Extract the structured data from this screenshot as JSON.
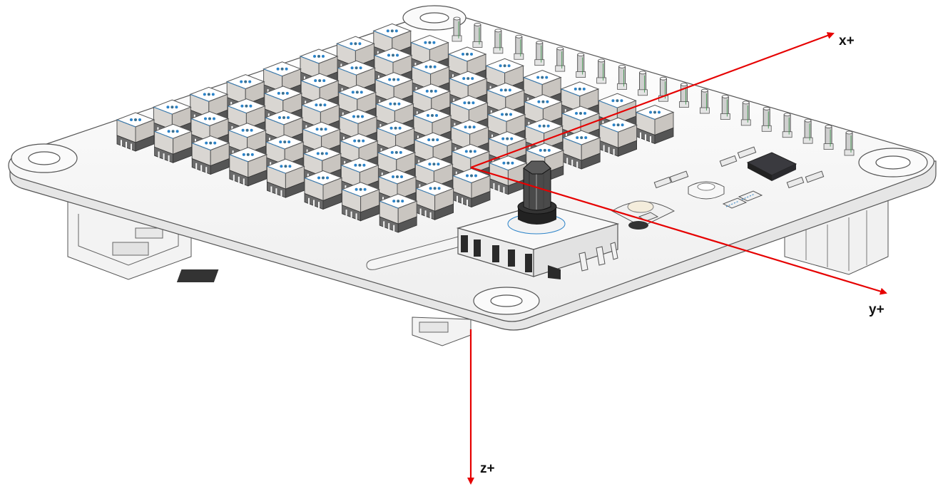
{
  "figure": {
    "description_none": "",
    "axes": {
      "x": {
        "label": "x+"
      },
      "y": {
        "label": "y+"
      },
      "z": {
        "label": "z+"
      }
    },
    "colors": {
      "axis": "#e60000",
      "board": "#f7f7f7",
      "outline": "#555555",
      "led_top": "#ffffff",
      "led_side": "#d9d6d2",
      "led_base": "#6b6b6b",
      "chip": "#2f2f33",
      "knob": "#3a3a3a",
      "pin": "#cfcfcf",
      "accent_blue": "#2b83c9"
    },
    "matrix": {
      "rows": 8,
      "cols": 8
    },
    "header_pins": {
      "count": 20
    }
  }
}
